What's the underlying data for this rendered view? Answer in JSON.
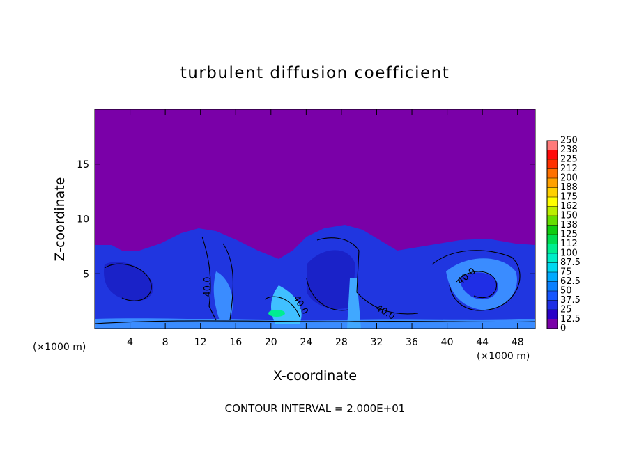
{
  "chart_data": {
    "type": "contour",
    "title": "turbulent diffusion coefficient",
    "x_label": "X-coordinate",
    "y_label": "Z-coordinate",
    "x_unit": "(×1000 m)",
    "y_unit": "(×1000 m)",
    "note": "CONTOUR INTERVAL = 2.000E+01",
    "xlim": [
      0,
      50
    ],
    "ylim": [
      0,
      20
    ],
    "xticks": [
      4,
      8,
      12,
      16,
      20,
      24,
      28,
      32,
      36,
      40,
      44,
      48
    ],
    "yticks": [
      5,
      10,
      15
    ],
    "contour_labels": [
      {
        "value": 40,
        "label": "40.0"
      },
      {
        "value": 40,
        "label": "40.0"
      },
      {
        "value": 40,
        "label": "40.0"
      },
      {
        "value": 40,
        "label": "40.0"
      }
    ],
    "colorbar": {
      "levels": [
        0,
        12.5,
        25,
        37.5,
        50,
        62.5,
        75,
        87.5,
        100,
        {
          "value": 112.5,
          "label": "112"
        },
        125,
        {
          "value": 137.5,
          "label": "138"
        },
        150,
        {
          "value": 162.5,
          "label": "162"
        },
        175,
        {
          "value": 187.5,
          "label": "188"
        },
        200,
        {
          "value": 212.5,
          "label": "212"
        },
        225,
        {
          "value": 237.5,
          "label": "238"
        },
        250
      ],
      "colors": [
        "#7a00a8",
        "#2a00c8",
        "#1f2ee6",
        "#1555ff",
        "#0a80ff",
        "#00aaff",
        "#00d8f0",
        "#00eec8",
        "#00ee90",
        "#00dd50",
        "#10cc10",
        "#66dd00",
        "#bbee00",
        "#ffff00",
        "#ffd000",
        "#ffa000",
        "#ff7000",
        "#ff3000",
        "#ff0a0a",
        "#ff7a7a"
      ]
    }
  }
}
